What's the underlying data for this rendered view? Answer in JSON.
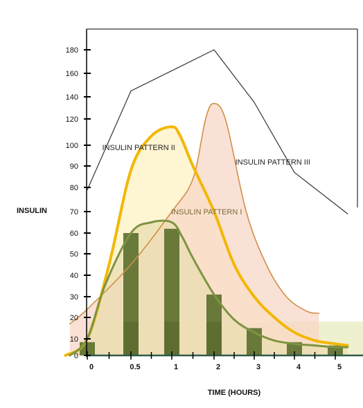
{
  "chart_data": {
    "type": "line",
    "title": "",
    "xlabel": "TIME (HOURS)",
    "ylabel": "INSULIN",
    "y_ticks": [
      0,
      10,
      20,
      30,
      40,
      50,
      60,
      70,
      80,
      90,
      100,
      120,
      140,
      160,
      180
    ],
    "y_tick_labels": [
      "0",
      "10",
      "20",
      "30",
      "40",
      "50",
      "60",
      "70",
      "80",
      "90",
      "100",
      "120",
      "140",
      "160",
      "180"
    ],
    "x_ticks": [
      0,
      0.5,
      1,
      2,
      3,
      4,
      5
    ],
    "x_tick_labels": [
      "0",
      "0.5",
      "1",
      "2",
      "3",
      "4",
      "5"
    ],
    "grid": false,
    "legend": "none",
    "bars": {
      "name": "",
      "color": "#5a6e2c",
      "x": [
        0,
        0.5,
        1,
        2,
        3,
        4,
        5
      ],
      "values": [
        8,
        60,
        62,
        31,
        15,
        8,
        6
      ]
    },
    "bands": [
      {
        "from": 0,
        "to": 18,
        "color": "#eef0cf"
      }
    ],
    "series": [
      {
        "key": "line",
        "color": "#333333",
        "x": [
          0,
          0.5,
          2,
          3,
          4,
          5.3
        ],
        "values": [
          79,
          145,
          180,
          135,
          87,
          69
        ]
      },
      {
        "key": "pattern2",
        "name": "INSULIN PATTERN II",
        "color": "#f2b705",
        "fill": "#fdf2c4",
        "x": [
          -0.25,
          0,
          0.25,
          0.5,
          0.75,
          1,
          1.2,
          1.5,
          2,
          2.5,
          3,
          3.5,
          4,
          4.5,
          5,
          5.3
        ],
        "values": [
          0,
          10,
          45,
          88,
          107,
          114,
          107,
          90,
          70,
          45,
          30,
          20,
          13,
          9,
          7,
          6
        ]
      },
      {
        "key": "pattern3",
        "name": "INSULIN PATTERN III",
        "color": "#d18f4a",
        "fill": "#f8d7c7",
        "x": [
          -0.2,
          0,
          0.5,
          1,
          1.5,
          1.8,
          2,
          2.3,
          2.8,
          3.3,
          3.8,
          4.3,
          4.6
        ],
        "values": [
          17,
          24,
          45,
          70,
          84,
          120,
          134,
          118,
          70,
          45,
          30,
          23,
          22
        ]
      },
      {
        "key": "pattern1",
        "name": "INSULIN PATTERN I",
        "color": "#7d9442",
        "fill": "#e9ddb0",
        "x": [
          -0.2,
          0,
          0.2,
          0.5,
          0.75,
          1,
          1.25,
          1.5,
          2,
          2.5,
          3,
          3.5,
          4,
          4.5,
          5,
          5.3
        ],
        "values": [
          0,
          10,
          35,
          60,
          65,
          65,
          58,
          48,
          31,
          19,
          13,
          9,
          7,
          6,
          5,
          5
        ]
      }
    ],
    "annotations": [
      {
        "text": "INSULIN PATTERN II",
        "x": 0.25,
        "y": 99
      },
      {
        "text": "INSULIN PATTERN III",
        "x": 2.7,
        "y": 92
      },
      {
        "text": "INSULIN PATTERN I",
        "x": 1.15,
        "y": 70
      }
    ]
  }
}
